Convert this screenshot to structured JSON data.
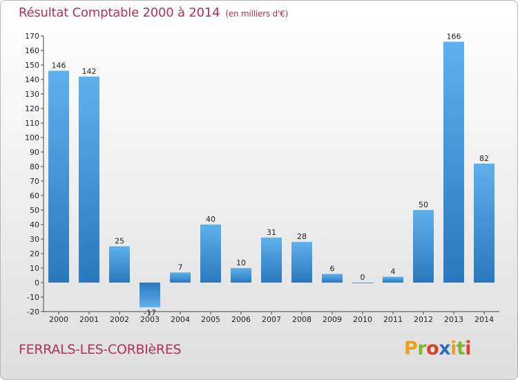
{
  "header": {
    "title": "Résultat Comptable 2000 à 2014",
    "unit": "(en milliers d'€)"
  },
  "footer": {
    "place": "FERRALS-LES-CORBIèRES",
    "logo": {
      "letters": [
        "P",
        "r",
        "o",
        "x",
        "i",
        "t",
        "i"
      ],
      "colors": [
        "#e8a020",
        "#7ab830",
        "#d8402a",
        "#2a6fbd",
        "#e8a020",
        "#7ab830",
        "#d8402a"
      ]
    }
  },
  "colors": {
    "bar": "#3a8fd4",
    "bar_light": "#5fb0ea",
    "bar_dark": "#2a78be"
  },
  "chart_data": {
    "type": "bar",
    "title": "Résultat Comptable 2000 à 2014",
    "subtitle": "(en milliers d'€)",
    "xlabel": "",
    "ylabel": "",
    "categories": [
      "2000",
      "2001",
      "2002",
      "2003",
      "2004",
      "2005",
      "2006",
      "2007",
      "2008",
      "2009",
      "2010",
      "2011",
      "2012",
      "2013",
      "2014"
    ],
    "values": [
      146,
      142,
      25,
      -17,
      7,
      40,
      10,
      31,
      28,
      6,
      0,
      4,
      50,
      166,
      82
    ],
    "ylim": [
      -20,
      170
    ],
    "yticks": [
      -20,
      -10,
      0,
      10,
      20,
      30,
      40,
      50,
      60,
      70,
      80,
      90,
      100,
      110,
      120,
      130,
      140,
      150,
      160,
      170
    ],
    "grid": false,
    "legend": "none"
  }
}
